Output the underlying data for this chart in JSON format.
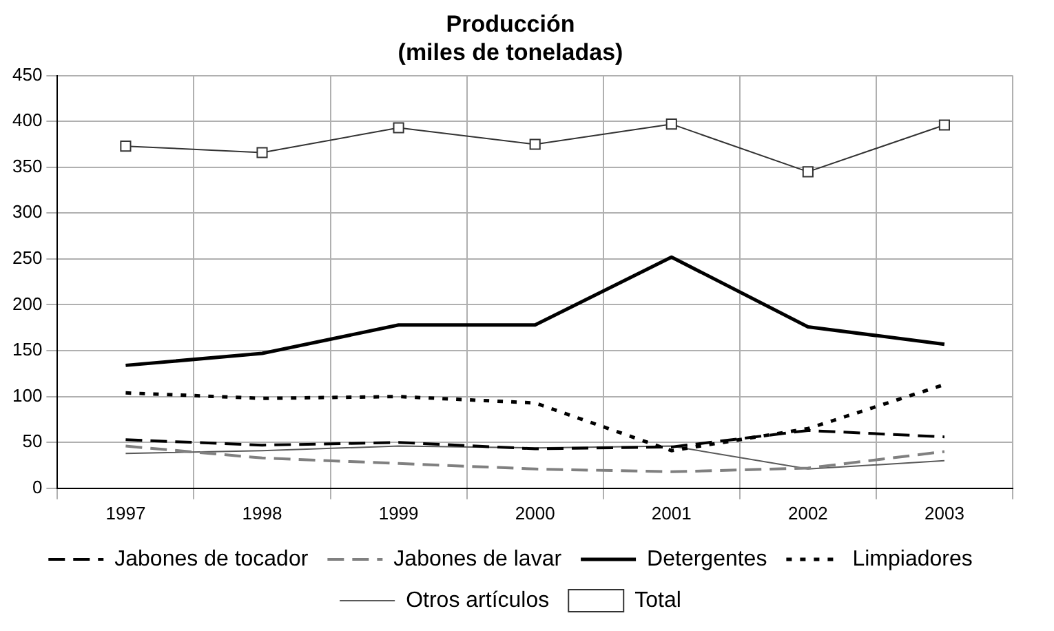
{
  "chart_data": {
    "type": "line",
    "title": "Producción\n(miles de toneladas)",
    "categories": [
      "1997",
      "1998",
      "1999",
      "2000",
      "2001",
      "2002",
      "2003"
    ],
    "ylim": [
      0,
      450
    ],
    "yticks": [
      0,
      50,
      100,
      150,
      200,
      250,
      300,
      350,
      400,
      450
    ],
    "grid": true,
    "legend": "bottom",
    "series": [
      {
        "name": "Jabones de tocador",
        "color": "#000000",
        "line_style": "dashed",
        "marker": "none",
        "values": [
          53,
          47,
          50,
          43,
          45,
          63,
          56
        ]
      },
      {
        "name": "Jabones de lavar",
        "color": "#808080",
        "line_style": "dashed",
        "marker": "none",
        "values": [
          46,
          33,
          27,
          21,
          18,
          22,
          40
        ]
      },
      {
        "name": "Detergentes",
        "color": "#000000",
        "line_style": "solid",
        "marker": "none",
        "values": [
          134,
          147,
          178,
          178,
          252,
          176,
          157
        ]
      },
      {
        "name": "Limpiadores",
        "color": "#000000",
        "line_style": "dotted",
        "marker": "none",
        "values": [
          104,
          98,
          100,
          93,
          41,
          65,
          113
        ]
      },
      {
        "name": "Otros artículos",
        "color": "#595959",
        "line_style": "solid",
        "marker": "none",
        "values": [
          38,
          41,
          46,
          44,
          46,
          21,
          30
        ]
      },
      {
        "name": "Total",
        "color": "#333333",
        "line_style": "solid",
        "marker": "square",
        "values": [
          373,
          366,
          393,
          375,
          397,
          345,
          396
        ]
      }
    ]
  }
}
